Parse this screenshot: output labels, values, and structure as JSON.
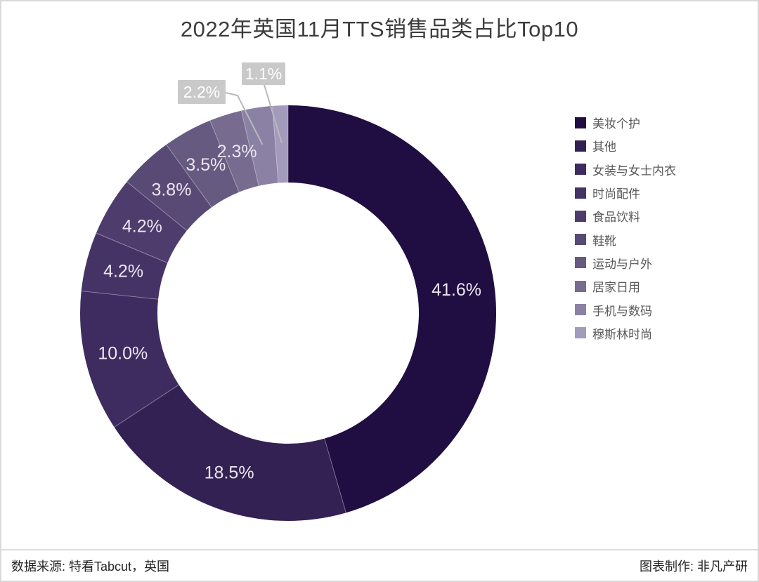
{
  "title": "2022年英国11月TTS销售品类占比Top10",
  "footer": {
    "source": "数据来源: 特看Tabcut，英国",
    "credit": "图表制作: 非凡产研"
  },
  "chart_data": {
    "type": "pie",
    "subtype": "donut",
    "title": "2022年英国11月TTS销售品类占比Top10",
    "legend_position": "right",
    "start_angle": "top",
    "direction": "clockwise",
    "unit": "%",
    "series": [
      {
        "label": "美妆个护",
        "value": 41.6,
        "display": "41.6%",
        "color": "#200d42",
        "label_layout": "inside"
      },
      {
        "label": "其他",
        "value": 18.5,
        "display": "18.5%",
        "color": "#332153",
        "label_layout": "inside"
      },
      {
        "label": "女装与女士内衣",
        "value": 10.0,
        "display": "10.0%",
        "color": "#3e2b5f",
        "label_layout": "inside"
      },
      {
        "label": "时尚配件",
        "value": 4.2,
        "display": "4.2%",
        "color": "#463366",
        "label_layout": "inside"
      },
      {
        "label": "食品饮料",
        "value": 4.2,
        "display": "4.2%",
        "color": "#4e3d6c",
        "label_layout": "inside"
      },
      {
        "label": "鞋靴",
        "value": 3.8,
        "display": "3.8%",
        "color": "#594a75",
        "label_layout": "inside"
      },
      {
        "label": "运动与户外",
        "value": 3.5,
        "display": "3.5%",
        "color": "#675a80",
        "label_layout": "inside"
      },
      {
        "label": "居家日用",
        "value": 2.3,
        "display": "2.3%",
        "color": "#786b90",
        "label_layout": "inside"
      },
      {
        "label": "手机与数码",
        "value": 2.2,
        "display": "2.2%",
        "color": "#8b81a4",
        "label_layout": "outside"
      },
      {
        "label": "穆斯林时尚",
        "value": 1.1,
        "display": "1.1%",
        "color": "#a39bbc",
        "label_layout": "outside"
      }
    ]
  },
  "colors": {
    "inside_label_text": "#e9e6ef",
    "outside_label_bg": "#c9c9c9",
    "outside_label_text": "#ffffff",
    "leader_line": "#b9b9b9",
    "legend_text": "#595959",
    "title_text": "#3c3c3c",
    "footer_text": "#262626",
    "page_border": "#d9d9d9"
  }
}
